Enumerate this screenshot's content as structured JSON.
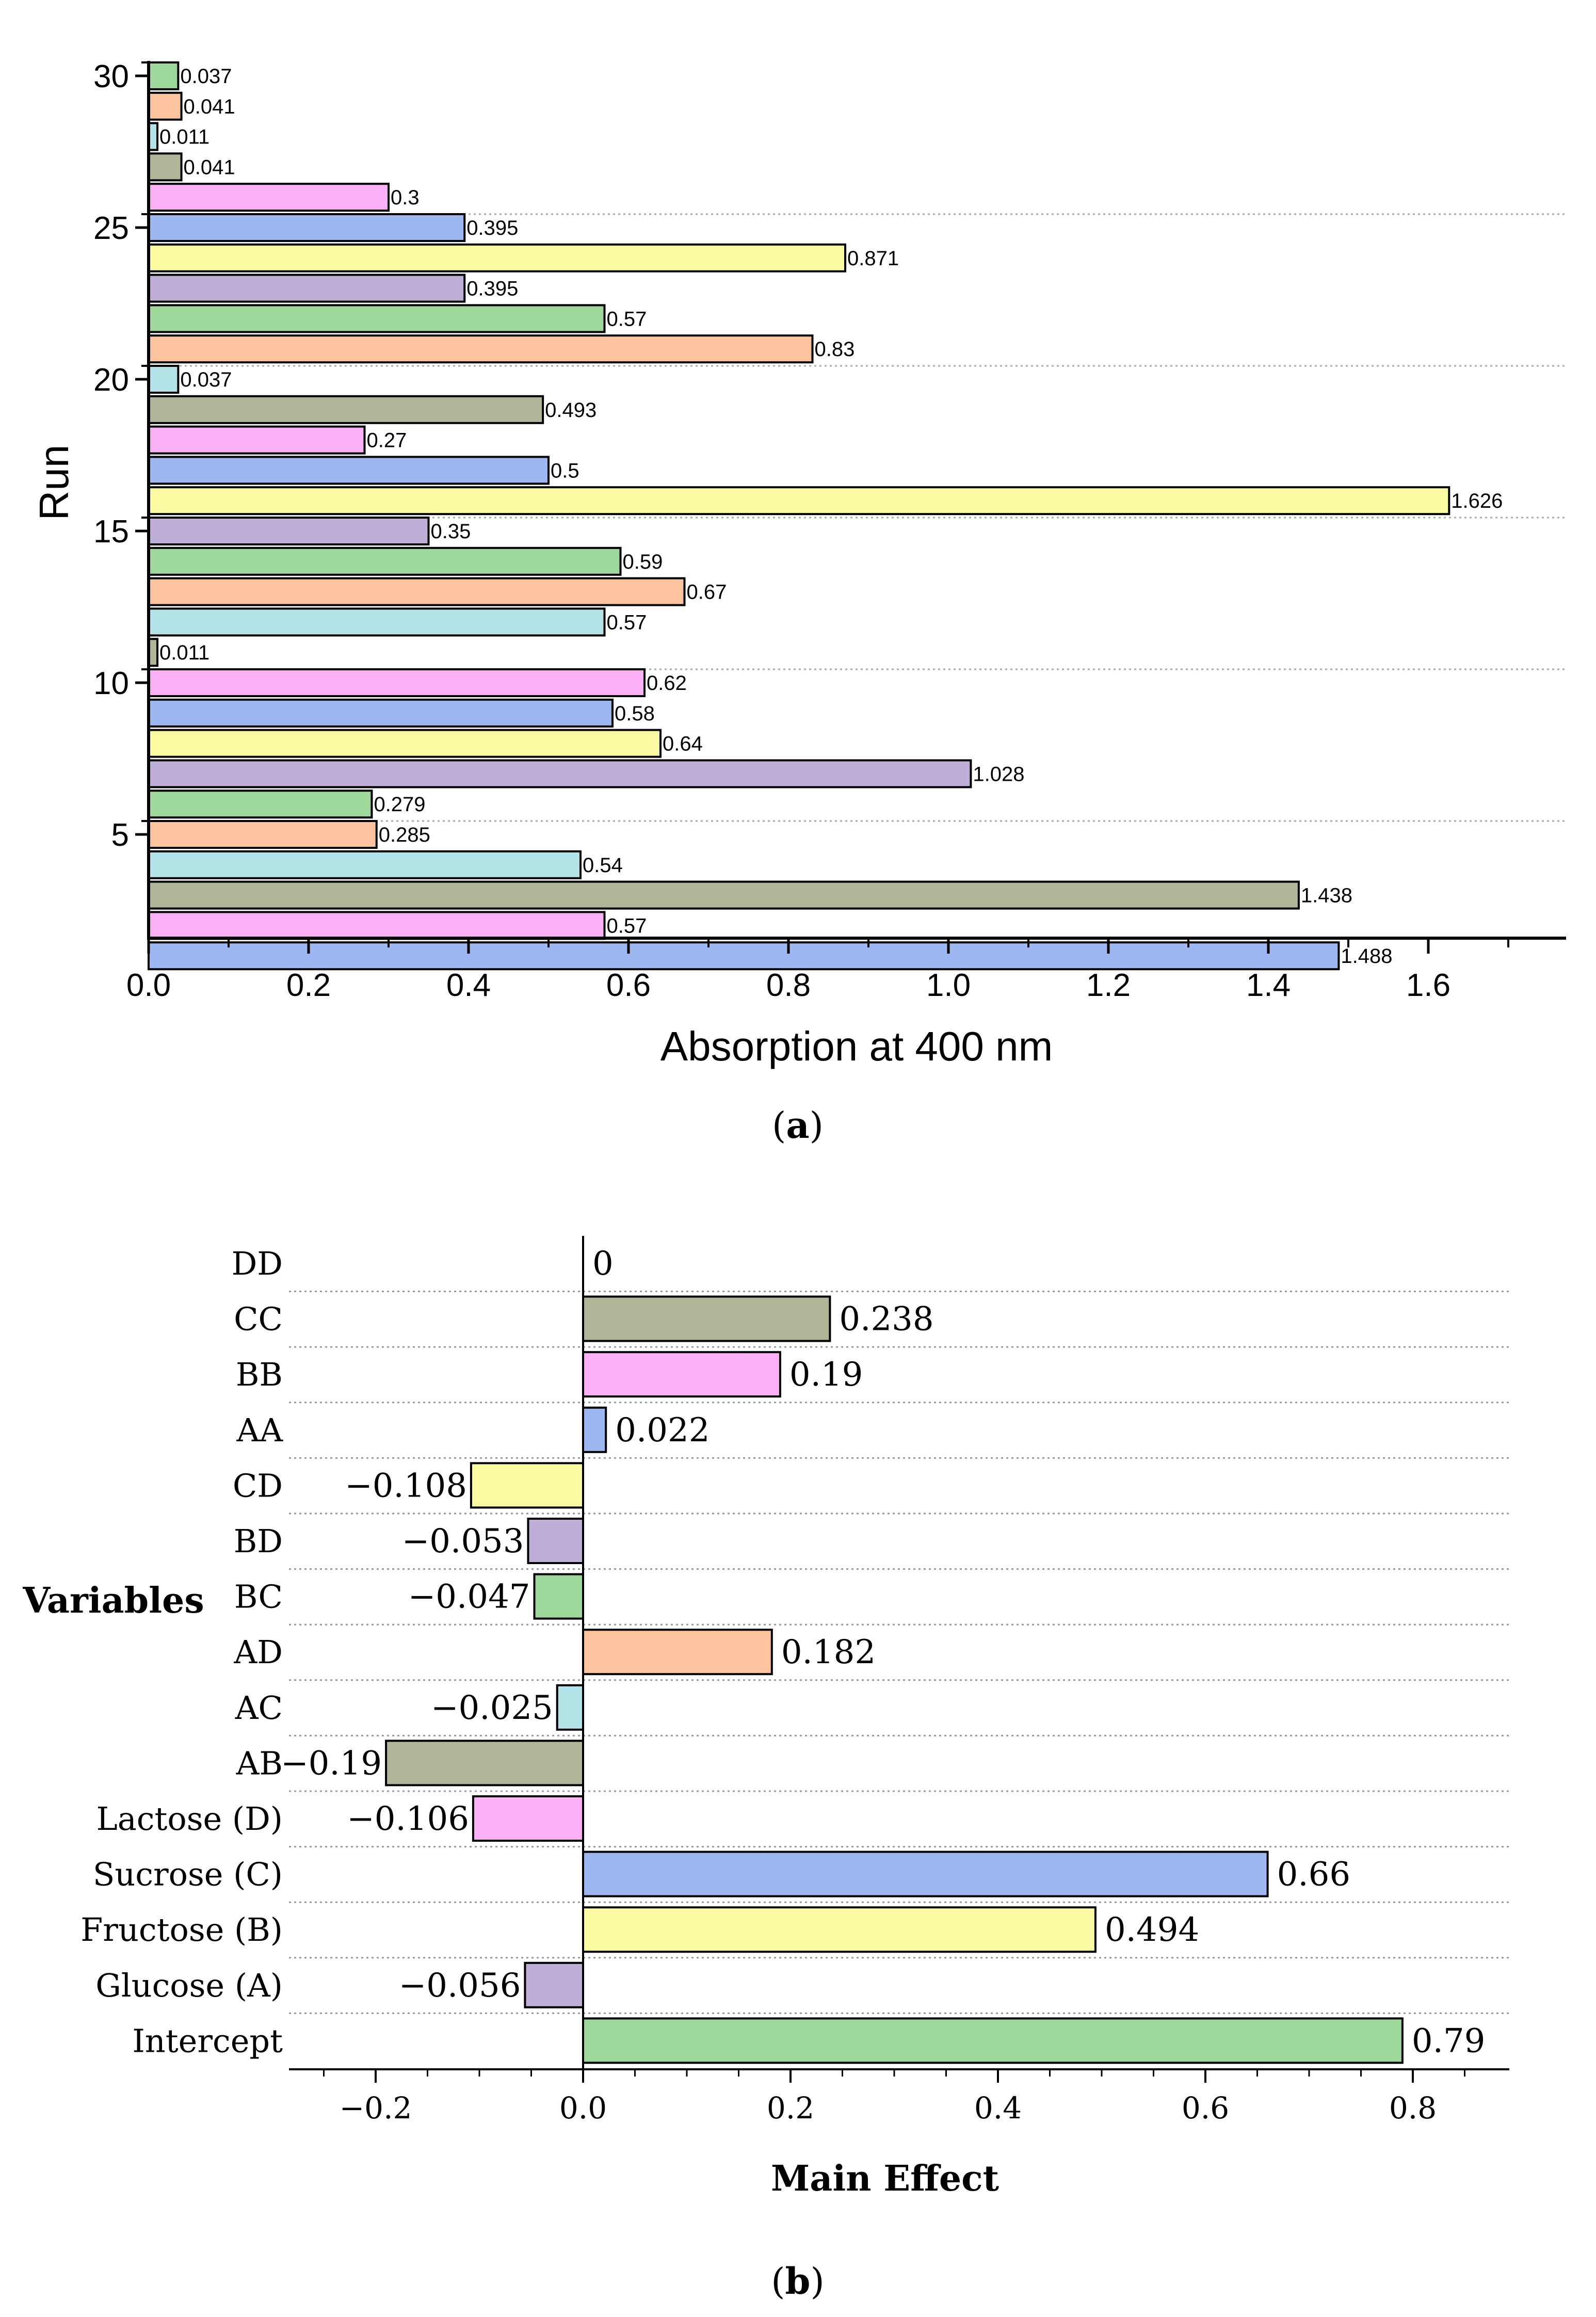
{
  "chart_data": [
    {
      "type": "bar",
      "orientation": "horizontal",
      "panel_label": "a",
      "title": "",
      "xlabel": "Absorption at 400 nm",
      "ylabel": "Run",
      "xlim": [
        0,
        1.76
      ],
      "xticks": [
        "0.0",
        "0.2",
        "0.4",
        "0.6",
        "0.8",
        "1.0",
        "1.2",
        "1.4",
        "1.6"
      ],
      "yticks": [
        "5",
        "10",
        "15",
        "20",
        "25",
        "30"
      ],
      "grid": "dotted horizontal",
      "categories": [
        "1",
        "2",
        "3",
        "4",
        "5",
        "6",
        "7",
        "8",
        "9",
        "10",
        "11",
        "12",
        "13",
        "14",
        "15",
        "16",
        "17",
        "18",
        "19",
        "20",
        "21",
        "22",
        "23",
        "24",
        "25",
        "26",
        "27",
        "28",
        "29",
        "30"
      ],
      "values": [
        1.488,
        0.57,
        1.438,
        0.54,
        0.285,
        0.279,
        1.028,
        0.64,
        0.58,
        0.62,
        0.011,
        0.57,
        0.67,
        0.59,
        0.35,
        1.626,
        0.5,
        0.27,
        0.493,
        0.037,
        0.83,
        0.57,
        0.395,
        0.871,
        0.395,
        0.3,
        0.041,
        0.011,
        0.041,
        0.037
      ],
      "labels": [
        "1.488",
        "0.57",
        "1.438",
        "0.54",
        "0.285",
        "0.279",
        "1.028",
        "0.64",
        "0.58",
        "0.62",
        "0.011",
        "0.57",
        "0.67",
        "0.59",
        "0.35",
        "1.626",
        "0.5",
        "0.27",
        "0.493",
        "0.037",
        "0.83",
        "0.57",
        "0.395",
        "0.871",
        "0.395",
        "0.3",
        "0.041",
        "0.011",
        "0.041",
        "0.037"
      ],
      "colors": [
        "#9db7f0",
        "#fab0f5",
        "#afb596",
        "#b3e3e6",
        "#fbc39e",
        "#9dd89a",
        "#bfaed6",
        "#fafaa2",
        "#9db7f0",
        "#fab0f5",
        "#afb596",
        "#b3e3e6",
        "#fbc39e",
        "#9dd89a",
        "#bfaed6",
        "#fafaa2",
        "#9db7f0",
        "#fab0f5",
        "#afb596",
        "#b3e3e6",
        "#fbc39e",
        "#9dd89a",
        "#bfaed6",
        "#fafaa2",
        "#9db7f0",
        "#fab0f5",
        "#afb596",
        "#b3e3e6",
        "#fbc39e",
        "#9dd89a"
      ]
    },
    {
      "type": "bar",
      "orientation": "horizontal",
      "panel_label": "b",
      "title": "",
      "xlabel": "Main Effect",
      "ylabel": "Variables",
      "xlim": [
        -0.28,
        0.88
      ],
      "xticks": [
        "−0.2",
        "0.0",
        "0.2",
        "0.4",
        "0.6",
        "0.8"
      ],
      "grid": "dotted horizontal",
      "categories": [
        "Intercept",
        "Glucose (A)",
        "Fructose (B)",
        "Sucrose (C)",
        "Lactose (D)",
        "AB",
        "AC",
        "AD",
        "BC",
        "BD",
        "CD",
        "AA",
        "BB",
        "CC",
        "DD"
      ],
      "values": [
        0.79,
        -0.056,
        0.494,
        0.66,
        -0.106,
        -0.19,
        -0.025,
        0.182,
        -0.047,
        -0.053,
        -0.108,
        0.022,
        0.19,
        0.238,
        0
      ],
      "labels": [
        "0.79",
        "−0.056",
        "0.494",
        "0.66",
        "−0.106",
        "−0.19",
        "−0.025",
        "0.182",
        "−0.047",
        "−0.053",
        "−0.108",
        "0.022",
        "0.19",
        "0.238",
        "0"
      ],
      "colors": [
        "#9dd89a",
        "#bfaed6",
        "#fafaa2",
        "#9db7f0",
        "#fab0f5",
        "#afb596",
        "#b3e3e6",
        "#fbc39e",
        "#9dd89a",
        "#bfaed6",
        "#fafaa2",
        "#9db7f0",
        "#fab0f5",
        "#afb596",
        "#ffffff"
      ]
    }
  ]
}
